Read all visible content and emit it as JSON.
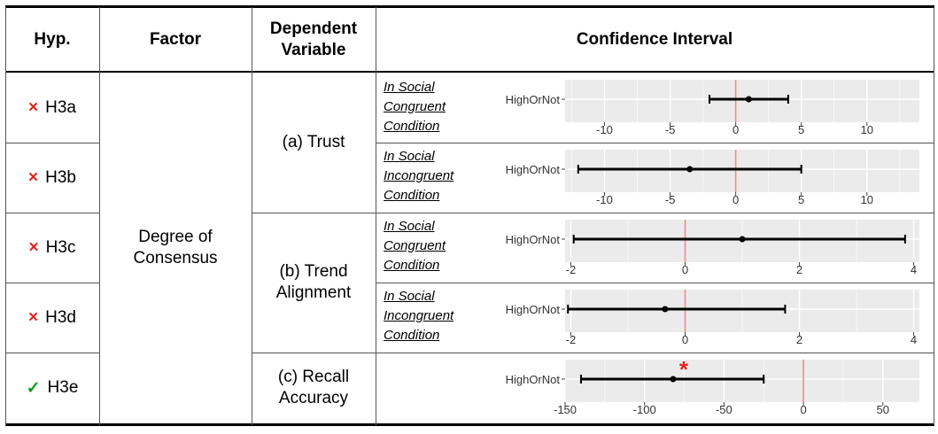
{
  "headers": {
    "hyp": "Hyp.",
    "factor": "Factor",
    "dv_line1": "Dependent",
    "dv_line2": "Variable",
    "ci": "Confidence Interval"
  },
  "factor": {
    "line1": "Degree of",
    "line2": "Consensus"
  },
  "dependent_variables": [
    {
      "line1": "(a) Trust",
      "line2": ""
    },
    {
      "line1": "(b) Trend",
      "line2": "Alignment"
    },
    {
      "line1": "(c) Recall",
      "line2": "Accuracy"
    }
  ],
  "rows": [
    {
      "mark": "×",
      "status": "rejected",
      "hyp": "H3a",
      "cond": [
        "In Social",
        "Congruent",
        "Condition"
      ]
    },
    {
      "mark": "×",
      "status": "rejected",
      "hyp": "H3b",
      "cond": [
        "In Social",
        "Incongruent",
        "Condition"
      ]
    },
    {
      "mark": "×",
      "status": "rejected",
      "hyp": "H3c",
      "cond": [
        "In Social",
        "Congruent",
        "Condition"
      ]
    },
    {
      "mark": "×",
      "status": "rejected",
      "hyp": "H3d",
      "cond": [
        "In Social",
        "Incongruent",
        "Condition"
      ]
    },
    {
      "mark": "✓",
      "status": "supported",
      "hyp": "H3e",
      "cond": [
        "",
        "",
        ""
      ]
    }
  ],
  "colors": {
    "reject": "#e0261c",
    "support": "#1a9a1a",
    "panel": "#ebebeb",
    "zero_line": "#f08a8a",
    "star": "#e0261c"
  },
  "chart_data": [
    {
      "type": "scatter",
      "label": "HighOrNot",
      "estimate": 1,
      "ci": [
        -2,
        4
      ],
      "xlim": [
        -13,
        14
      ],
      "ticks": [
        -10,
        -5,
        0,
        5,
        10
      ],
      "zero_line": 0,
      "significant": false
    },
    {
      "type": "scatter",
      "label": "HighOrNot",
      "estimate": -3.5,
      "ci": [
        -12,
        5
      ],
      "xlim": [
        -13,
        14
      ],
      "ticks": [
        -10,
        -5,
        0,
        5,
        10
      ],
      "zero_line": 0,
      "significant": false
    },
    {
      "type": "scatter",
      "label": "HighOrNot",
      "estimate": 1.0,
      "ci": [
        -1.95,
        3.85
      ],
      "xlim": [
        -2.1,
        4.1
      ],
      "ticks": [
        -2,
        0,
        2,
        4
      ],
      "zero_line": 0,
      "significant": false
    },
    {
      "type": "scatter",
      "label": "HighOrNot",
      "estimate": -0.35,
      "ci": [
        -2.05,
        1.75
      ],
      "xlim": [
        -2.1,
        4.1
      ],
      "ticks": [
        -2,
        0,
        2,
        4
      ],
      "zero_line": 0,
      "significant": false
    },
    {
      "type": "scatter",
      "label": "HighOrNot",
      "estimate": -82,
      "ci": [
        -140,
        -25
      ],
      "xlim": [
        -150,
        73
      ],
      "ticks": [
        -150,
        -100,
        -50,
        0,
        50
      ],
      "zero_line": 0,
      "significant": true,
      "star": "*"
    }
  ]
}
